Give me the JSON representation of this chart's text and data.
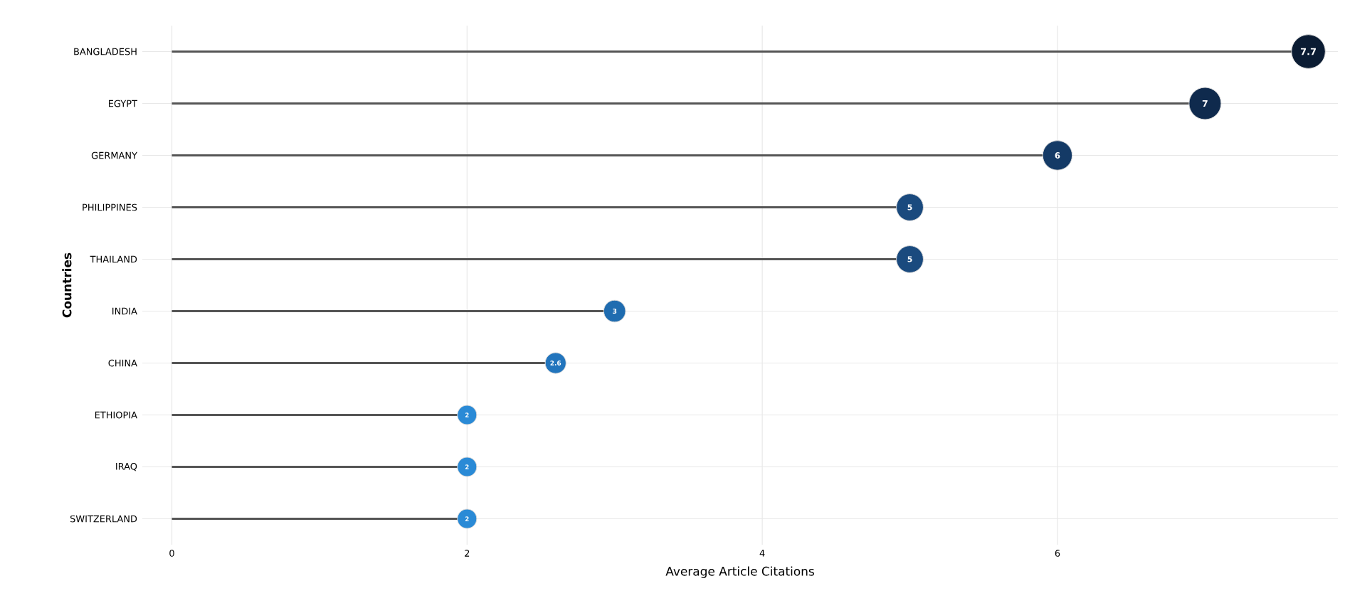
{
  "chart_data": {
    "type": "lollipop",
    "orientation": "horizontal",
    "xlabel": "Average Article Citations",
    "ylabel": "Countries",
    "categories": [
      "BANGLADESH",
      "EGYPT",
      "GERMANY",
      "PHILIPPINES",
      "THAILAND",
      "INDIA",
      "CHINA",
      "ETHIOPIA",
      "IRAQ",
      "SWITZERLAND"
    ],
    "values": [
      7.7,
      7,
      6,
      5,
      5,
      3,
      2.6,
      2,
      2,
      2
    ],
    "colors": [
      "#0b1c33",
      "#0f2a4d",
      "#143a66",
      "#1a4a7e",
      "#1a4a7e",
      "#1f6cb0",
      "#2275bd",
      "#2a8ad6",
      "#2a8ad6",
      "#2a8ad6"
    ],
    "xlim": [
      -0.2,
      7.9
    ],
    "xticks": [
      0,
      2,
      4,
      6
    ],
    "grid": true,
    "data_labels": true,
    "marker": "circle"
  }
}
